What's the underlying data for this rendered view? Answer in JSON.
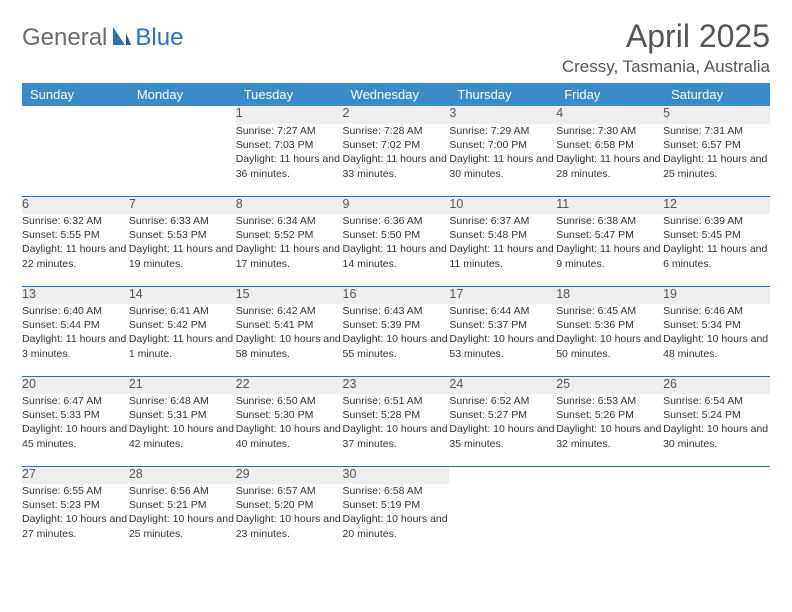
{
  "brand": {
    "part1": "General",
    "part2": "Blue"
  },
  "title": "April 2025",
  "location": "Cressy, Tasmania, Australia",
  "colors": {
    "header_bg": "#3b8bc9",
    "header_text": "#ffffff",
    "daynum_bg": "#eeeeee",
    "row_divider": "#2a71b8",
    "body_text": "#333333",
    "title_text": "#555555",
    "logo_gray": "#6a6a6a",
    "logo_blue": "#2a71b8",
    "page_bg": "#ffffff"
  },
  "weekdays": [
    "Sunday",
    "Monday",
    "Tuesday",
    "Wednesday",
    "Thursday",
    "Friday",
    "Saturday"
  ],
  "weeks": [
    [
      null,
      null,
      {
        "n": "1",
        "sr": "Sunrise: 7:27 AM",
        "ss": "Sunset: 7:03 PM",
        "dl": "Daylight: 11 hours and 36 minutes."
      },
      {
        "n": "2",
        "sr": "Sunrise: 7:28 AM",
        "ss": "Sunset: 7:02 PM",
        "dl": "Daylight: 11 hours and 33 minutes."
      },
      {
        "n": "3",
        "sr": "Sunrise: 7:29 AM",
        "ss": "Sunset: 7:00 PM",
        "dl": "Daylight: 11 hours and 30 minutes."
      },
      {
        "n": "4",
        "sr": "Sunrise: 7:30 AM",
        "ss": "Sunset: 6:58 PM",
        "dl": "Daylight: 11 hours and 28 minutes."
      },
      {
        "n": "5",
        "sr": "Sunrise: 7:31 AM",
        "ss": "Sunset: 6:57 PM",
        "dl": "Daylight: 11 hours and 25 minutes."
      }
    ],
    [
      {
        "n": "6",
        "sr": "Sunrise: 6:32 AM",
        "ss": "Sunset: 5:55 PM",
        "dl": "Daylight: 11 hours and 22 minutes."
      },
      {
        "n": "7",
        "sr": "Sunrise: 6:33 AM",
        "ss": "Sunset: 5:53 PM",
        "dl": "Daylight: 11 hours and 19 minutes."
      },
      {
        "n": "8",
        "sr": "Sunrise: 6:34 AM",
        "ss": "Sunset: 5:52 PM",
        "dl": "Daylight: 11 hours and 17 minutes."
      },
      {
        "n": "9",
        "sr": "Sunrise: 6:36 AM",
        "ss": "Sunset: 5:50 PM",
        "dl": "Daylight: 11 hours and 14 minutes."
      },
      {
        "n": "10",
        "sr": "Sunrise: 6:37 AM",
        "ss": "Sunset: 5:48 PM",
        "dl": "Daylight: 11 hours and 11 minutes."
      },
      {
        "n": "11",
        "sr": "Sunrise: 6:38 AM",
        "ss": "Sunset: 5:47 PM",
        "dl": "Daylight: 11 hours and 9 minutes."
      },
      {
        "n": "12",
        "sr": "Sunrise: 6:39 AM",
        "ss": "Sunset: 5:45 PM",
        "dl": "Daylight: 11 hours and 6 minutes."
      }
    ],
    [
      {
        "n": "13",
        "sr": "Sunrise: 6:40 AM",
        "ss": "Sunset: 5:44 PM",
        "dl": "Daylight: 11 hours and 3 minutes."
      },
      {
        "n": "14",
        "sr": "Sunrise: 6:41 AM",
        "ss": "Sunset: 5:42 PM",
        "dl": "Daylight: 11 hours and 1 minute."
      },
      {
        "n": "15",
        "sr": "Sunrise: 6:42 AM",
        "ss": "Sunset: 5:41 PM",
        "dl": "Daylight: 10 hours and 58 minutes."
      },
      {
        "n": "16",
        "sr": "Sunrise: 6:43 AM",
        "ss": "Sunset: 5:39 PM",
        "dl": "Daylight: 10 hours and 55 minutes."
      },
      {
        "n": "17",
        "sr": "Sunrise: 6:44 AM",
        "ss": "Sunset: 5:37 PM",
        "dl": "Daylight: 10 hours and 53 minutes."
      },
      {
        "n": "18",
        "sr": "Sunrise: 6:45 AM",
        "ss": "Sunset: 5:36 PM",
        "dl": "Daylight: 10 hours and 50 minutes."
      },
      {
        "n": "19",
        "sr": "Sunrise: 6:46 AM",
        "ss": "Sunset: 5:34 PM",
        "dl": "Daylight: 10 hours and 48 minutes."
      }
    ],
    [
      {
        "n": "20",
        "sr": "Sunrise: 6:47 AM",
        "ss": "Sunset: 5:33 PM",
        "dl": "Daylight: 10 hours and 45 minutes."
      },
      {
        "n": "21",
        "sr": "Sunrise: 6:48 AM",
        "ss": "Sunset: 5:31 PM",
        "dl": "Daylight: 10 hours and 42 minutes."
      },
      {
        "n": "22",
        "sr": "Sunrise: 6:50 AM",
        "ss": "Sunset: 5:30 PM",
        "dl": "Daylight: 10 hours and 40 minutes."
      },
      {
        "n": "23",
        "sr": "Sunrise: 6:51 AM",
        "ss": "Sunset: 5:28 PM",
        "dl": "Daylight: 10 hours and 37 minutes."
      },
      {
        "n": "24",
        "sr": "Sunrise: 6:52 AM",
        "ss": "Sunset: 5:27 PM",
        "dl": "Daylight: 10 hours and 35 minutes."
      },
      {
        "n": "25",
        "sr": "Sunrise: 6:53 AM",
        "ss": "Sunset: 5:26 PM",
        "dl": "Daylight: 10 hours and 32 minutes."
      },
      {
        "n": "26",
        "sr": "Sunrise: 6:54 AM",
        "ss": "Sunset: 5:24 PM",
        "dl": "Daylight: 10 hours and 30 minutes."
      }
    ],
    [
      {
        "n": "27",
        "sr": "Sunrise: 6:55 AM",
        "ss": "Sunset: 5:23 PM",
        "dl": "Daylight: 10 hours and 27 minutes."
      },
      {
        "n": "28",
        "sr": "Sunrise: 6:56 AM",
        "ss": "Sunset: 5:21 PM",
        "dl": "Daylight: 10 hours and 25 minutes."
      },
      {
        "n": "29",
        "sr": "Sunrise: 6:57 AM",
        "ss": "Sunset: 5:20 PM",
        "dl": "Daylight: 10 hours and 23 minutes."
      },
      {
        "n": "30",
        "sr": "Sunrise: 6:58 AM",
        "ss": "Sunset: 5:19 PM",
        "dl": "Daylight: 10 hours and 20 minutes."
      },
      null,
      null,
      null
    ]
  ]
}
